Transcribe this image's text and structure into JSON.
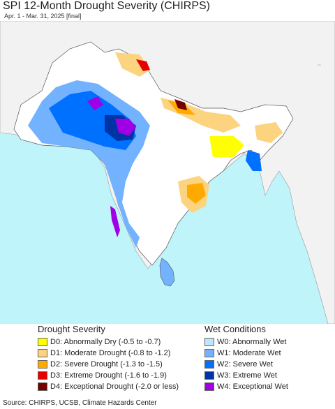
{
  "header": {
    "title": "SPI 12-Month Drought Severity (CHIRPS)",
    "subtitle": "Apr. 1 - Mar. 31, 2025 [final]"
  },
  "legend": {
    "drought": {
      "title": "Drought Severity",
      "items": [
        {
          "label": "D0: Abnormally Dry (-0.5 to -0.7)",
          "color": "#ffff00"
        },
        {
          "label": "D1: Moderate Drought (-0.8 to -1.2)",
          "color": "#fcd37f"
        },
        {
          "label": "D2: Severe Drought (-1.3 to -1.5)",
          "color": "#ffaa00"
        },
        {
          "label": "D3: Extreme Drought (-1.6 to -1.9)",
          "color": "#e60000"
        },
        {
          "label": "D4: Exceptional Drought (-2.0 or less)",
          "color": "#730000"
        }
      ]
    },
    "wet": {
      "title": "Wet Conditions",
      "items": [
        {
          "label": "W0: Abnormally Wet",
          "color": "#bfe6ff"
        },
        {
          "label": "W1: Moderate Wet",
          "color": "#73b2ff"
        },
        {
          "label": "W2: Severe Wet",
          "color": "#0070ff"
        },
        {
          "label": "W3: Extreme Wet",
          "color": "#0033a3"
        },
        {
          "label": "W4: Exceptional Wet",
          "color": "#a000e6"
        }
      ]
    }
  },
  "source": "Source: CHIRPS, UCSB, Climate Hazards Center"
}
